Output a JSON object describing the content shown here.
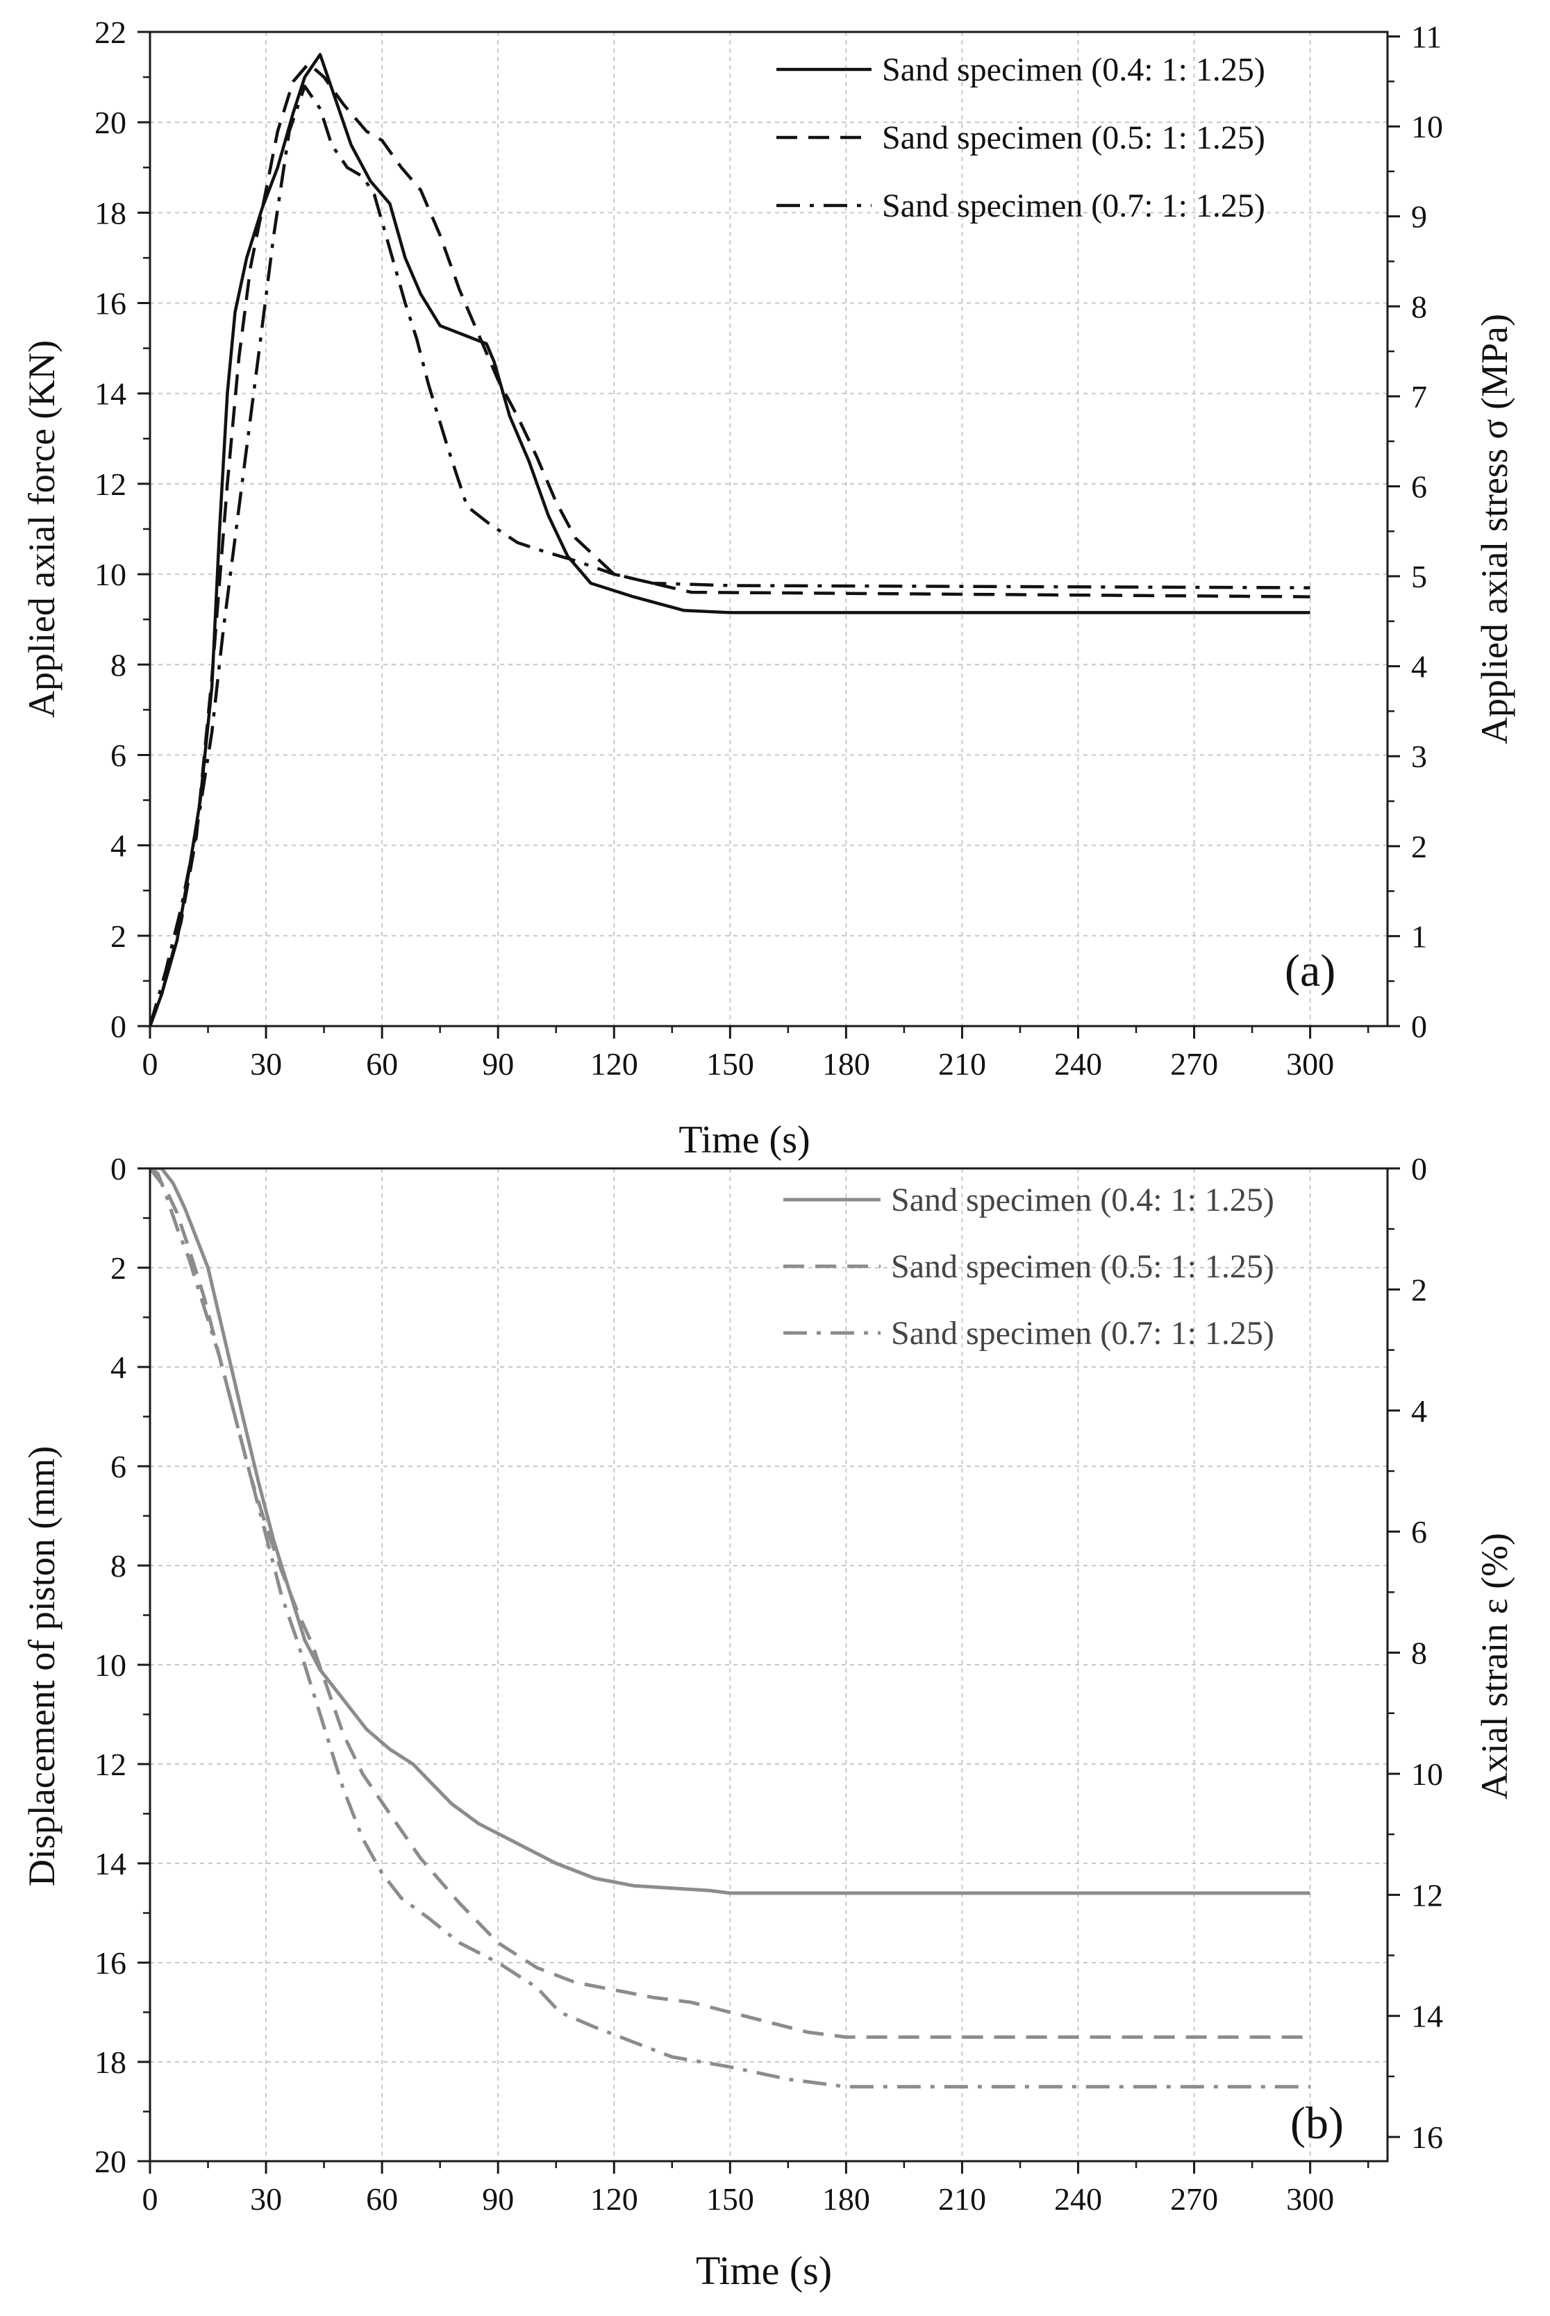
{
  "chart_data": [
    {
      "type": "line",
      "panel_label": "(a)",
      "xlabel": "Time (s)",
      "ylabel": "Applied axial force (KN)",
      "ylabel_right": "Applied axial stress σ (MPa)",
      "xlim": [
        0,
        320
      ],
      "ylim": [
        0,
        22
      ],
      "ylim_right": [
        0,
        11.05
      ],
      "yinverted": false,
      "x_ticks": [
        "0",
        "30",
        "60",
        "90",
        "120",
        "150",
        "180",
        "210",
        "240",
        "270",
        "300"
      ],
      "y_ticks": [
        "0",
        "2",
        "4",
        "6",
        "8",
        "10",
        "12",
        "14",
        "16",
        "18",
        "20",
        "22"
      ],
      "y_ticks_right": [
        "0",
        "1",
        "2",
        "3",
        "4",
        "5",
        "6",
        "7",
        "8",
        "9",
        "10",
        "11"
      ],
      "grid": true,
      "legend_position": "top-right",
      "colors": {
        "series": "#111111"
      },
      "series": [
        {
          "name": "Sand specimen (0.4: 1: 1.25)",
          "style": "solid",
          "points": [
            [
              0,
              0
            ],
            [
              3,
              0.7
            ],
            [
              7,
              1.9
            ],
            [
              10,
              3.4
            ],
            [
              13,
              5.0
            ],
            [
              16,
              7.5
            ],
            [
              18,
              11
            ],
            [
              20,
              14
            ],
            [
              22,
              15.8
            ],
            [
              25,
              17
            ],
            [
              29,
              18.1
            ],
            [
              33,
              19
            ],
            [
              37,
              20.2
            ],
            [
              40,
              21
            ],
            [
              44,
              21.5
            ],
            [
              48,
              20.5
            ],
            [
              52,
              19.5
            ],
            [
              57,
              18.7
            ],
            [
              62,
              18.2
            ],
            [
              66,
              17
            ],
            [
              70,
              16.2
            ],
            [
              75,
              15.5
            ],
            [
              81,
              15.3
            ],
            [
              87,
              15.1
            ],
            [
              89,
              14.7
            ],
            [
              93,
              13.5
            ],
            [
              98,
              12.5
            ],
            [
              103,
              11.3
            ],
            [
              108,
              10.4
            ],
            [
              114,
              9.8
            ],
            [
              125,
              9.5
            ],
            [
              138,
              9.2
            ],
            [
              150,
              9.15
            ],
            [
              200,
              9.15
            ],
            [
              300,
              9.15
            ]
          ]
        },
        {
          "name": "Sand specimen (0.5: 1: 1.25)",
          "style": "dashed",
          "points": [
            [
              0,
              0
            ],
            [
              3,
              0.7
            ],
            [
              8,
              2.3
            ],
            [
              12,
              4.2
            ],
            [
              16,
              7.7
            ],
            [
              20,
              12
            ],
            [
              23,
              14.8
            ],
            [
              26,
              16.8
            ],
            [
              30,
              18.5
            ],
            [
              33,
              19.8
            ],
            [
              37,
              20.9
            ],
            [
              41,
              21.3
            ],
            [
              45,
              21.0
            ],
            [
              50,
              20.4
            ],
            [
              56,
              19.8
            ],
            [
              60,
              19.6
            ],
            [
              65,
              19.0
            ],
            [
              70,
              18.5
            ],
            [
              75,
              17.5
            ],
            [
              80,
              16.3
            ],
            [
              85,
              15.3
            ],
            [
              90,
              14.3
            ],
            [
              95,
              13.5
            ],
            [
              100,
              12.6
            ],
            [
              105,
              11.6
            ],
            [
              110,
              10.8
            ],
            [
              120,
              10.0
            ],
            [
              130,
              9.8
            ],
            [
              140,
              9.6
            ],
            [
              300,
              9.5
            ]
          ]
        },
        {
          "name": "Sand specimen (0.7: 1: 1.25)",
          "style": "dashdot",
          "points": [
            [
              0,
              0
            ],
            [
              4,
              1.2
            ],
            [
              8,
              2.6
            ],
            [
              12,
              4.3
            ],
            [
              16,
              6.5
            ],
            [
              19,
              8.8
            ],
            [
              22,
              10.8
            ],
            [
              25,
              12.8
            ],
            [
              28,
              14.8
            ],
            [
              32,
              17.5
            ],
            [
              36,
              19.8
            ],
            [
              40,
              20.8
            ],
            [
              44,
              20.3
            ],
            [
              47,
              19.5
            ],
            [
              51,
              19.0
            ],
            [
              55,
              18.8
            ],
            [
              58,
              18.4
            ],
            [
              62,
              17.2
            ],
            [
              66,
              16.0
            ],
            [
              69,
              15.2
            ],
            [
              72,
              14.2
            ],
            [
              77,
              12.8
            ],
            [
              82,
              11.5
            ],
            [
              88,
              11.1
            ],
            [
              95,
              10.7
            ],
            [
              102,
              10.5
            ],
            [
              110,
              10.3
            ],
            [
              120,
              10.0
            ],
            [
              130,
              9.8
            ],
            [
              150,
              9.75
            ],
            [
              300,
              9.7
            ]
          ]
        }
      ]
    },
    {
      "type": "line",
      "panel_label": "(b)",
      "xlabel": "Time (s)",
      "ylabel": "Displacement of piston (mm)",
      "ylabel_right": "Axial strain ε (%)",
      "xlim": [
        0,
        320
      ],
      "ylim": [
        0,
        20
      ],
      "ylim_right": [
        0,
        16.4
      ],
      "yinverted": true,
      "x_ticks": [
        "0",
        "30",
        "60",
        "90",
        "120",
        "150",
        "180",
        "210",
        "240",
        "270",
        "300"
      ],
      "y_ticks": [
        "0",
        "2",
        "4",
        "6",
        "8",
        "10",
        "12",
        "14",
        "16",
        "18",
        "20"
      ],
      "y_ticks_right": [
        "0",
        "2",
        "4",
        "6",
        "8",
        "10",
        "12",
        "14",
        "16"
      ],
      "grid": true,
      "legend_position": "top-right",
      "colors": {
        "series": "#8c8c8c"
      },
      "series": [
        {
          "name": "Sand specimen (0.4: 1: 1.25)",
          "style": "solid",
          "points": [
            [
              0,
              0
            ],
            [
              3,
              0
            ],
            [
              6,
              0.3
            ],
            [
              9,
              0.8
            ],
            [
              12,
              1.4
            ],
            [
              15,
              2.0
            ],
            [
              18,
              3.0
            ],
            [
              21,
              4.0
            ],
            [
              24,
              5.0
            ],
            [
              28,
              6.3
            ],
            [
              32,
              7.5
            ],
            [
              36,
              8.5
            ],
            [
              40,
              9.5
            ],
            [
              44,
              10.1
            ],
            [
              48,
              10.5
            ],
            [
              52,
              10.9
            ],
            [
              56,
              11.3
            ],
            [
              62,
              11.7
            ],
            [
              68,
              12.0
            ],
            [
              73,
              12.4
            ],
            [
              78,
              12.8
            ],
            [
              85,
              13.2
            ],
            [
              95,
              13.6
            ],
            [
              105,
              14.0
            ],
            [
              115,
              14.3
            ],
            [
              125,
              14.45
            ],
            [
              135,
              14.5
            ],
            [
              145,
              14.55
            ],
            [
              150,
              14.6
            ],
            [
              300,
              14.6
            ]
          ]
        },
        {
          "name": "Sand specimen (0.5: 1: 1.25)",
          "style": "dashed",
          "points": [
            [
              0,
              0
            ],
            [
              4,
              0.4
            ],
            [
              7,
              0.9
            ],
            [
              10,
              1.6
            ],
            [
              14,
              2.6
            ],
            [
              18,
              3.8
            ],
            [
              22,
              5.0
            ],
            [
              26,
              6.2
            ],
            [
              30,
              7.2
            ],
            [
              34,
              8.1
            ],
            [
              38,
              8.9
            ],
            [
              42,
              9.6
            ],
            [
              46,
              10.5
            ],
            [
              50,
              11.4
            ],
            [
              55,
              12.2
            ],
            [
              62,
              13.0
            ],
            [
              70,
              13.9
            ],
            [
              80,
              14.8
            ],
            [
              90,
              15.6
            ],
            [
              100,
              16.1
            ],
            [
              110,
              16.4
            ],
            [
              120,
              16.55
            ],
            [
              130,
              16.7
            ],
            [
              140,
              16.8
            ],
            [
              150,
              17.0
            ],
            [
              160,
              17.2
            ],
            [
              170,
              17.4
            ],
            [
              180,
              17.5
            ],
            [
              300,
              17.5
            ]
          ]
        },
        {
          "name": "Sand specimen (0.7: 1: 1.25)",
          "style": "dashdot",
          "points": [
            [
              0,
              0
            ],
            [
              2,
              0.1
            ],
            [
              4,
              0.5
            ],
            [
              7,
              1.2
            ],
            [
              10,
              1.8
            ],
            [
              14,
              2.8
            ],
            [
              18,
              3.8
            ],
            [
              22,
              5.0
            ],
            [
              26,
              6.2
            ],
            [
              30,
              7.4
            ],
            [
              34,
              8.6
            ],
            [
              38,
              9.5
            ],
            [
              42,
              10.5
            ],
            [
              46,
              11.5
            ],
            [
              50,
              12.5
            ],
            [
              55,
              13.5
            ],
            [
              60,
              14.2
            ],
            [
              65,
              14.7
            ],
            [
              72,
              15.1
            ],
            [
              80,
              15.6
            ],
            [
              90,
              16.0
            ],
            [
              100,
              16.5
            ],
            [
              106,
              17.0
            ],
            [
              115,
              17.3
            ],
            [
              125,
              17.6
            ],
            [
              135,
              17.9
            ],
            [
              150,
              18.1
            ],
            [
              165,
              18.35
            ],
            [
              180,
              18.5
            ],
            [
              300,
              18.5
            ]
          ]
        }
      ]
    }
  ]
}
